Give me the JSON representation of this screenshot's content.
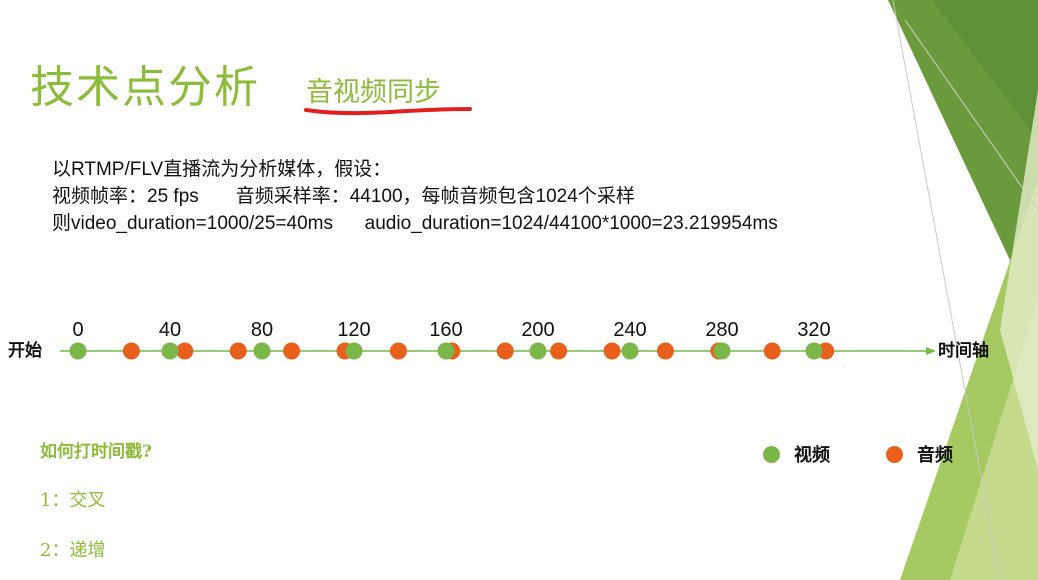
{
  "slide": {
    "title": "技术点分析",
    "subtitle": "音视频同步"
  },
  "assumptions": {
    "line1": "以RTMP/FLV直播流为分析媒体，假设：",
    "line2": "视频帧率：25 fps       音频采样率：44100，每帧音频包含1024个采样",
    "line3": "则video_duration=1000/25=40ms      audio_duration=1024/44100*1000=23.219954ms"
  },
  "timeline": {
    "start_label": "开始",
    "end_label": "时间轴",
    "tick_labels": [
      "0",
      "40",
      "80",
      "120",
      "160",
      "200",
      "240",
      "280",
      "320"
    ],
    "video_times_ms": [
      0,
      40,
      80,
      120,
      160,
      200,
      240,
      280,
      320
    ],
    "audio_times_ms": [
      23.22,
      46.44,
      69.66,
      92.88,
      116.1,
      139.32,
      162.54,
      185.76,
      208.98,
      232.2,
      255.42,
      278.64,
      301.86,
      325.08
    ],
    "colors": {
      "video": "#7ab648",
      "audio": "#e8601c",
      "axis": "#7ab648"
    }
  },
  "questions": {
    "heading": "如何打时间戳?",
    "item1": "1：交叉",
    "item2": "2：递增"
  },
  "legend": {
    "video_label": "视频",
    "audio_label": "音频"
  }
}
